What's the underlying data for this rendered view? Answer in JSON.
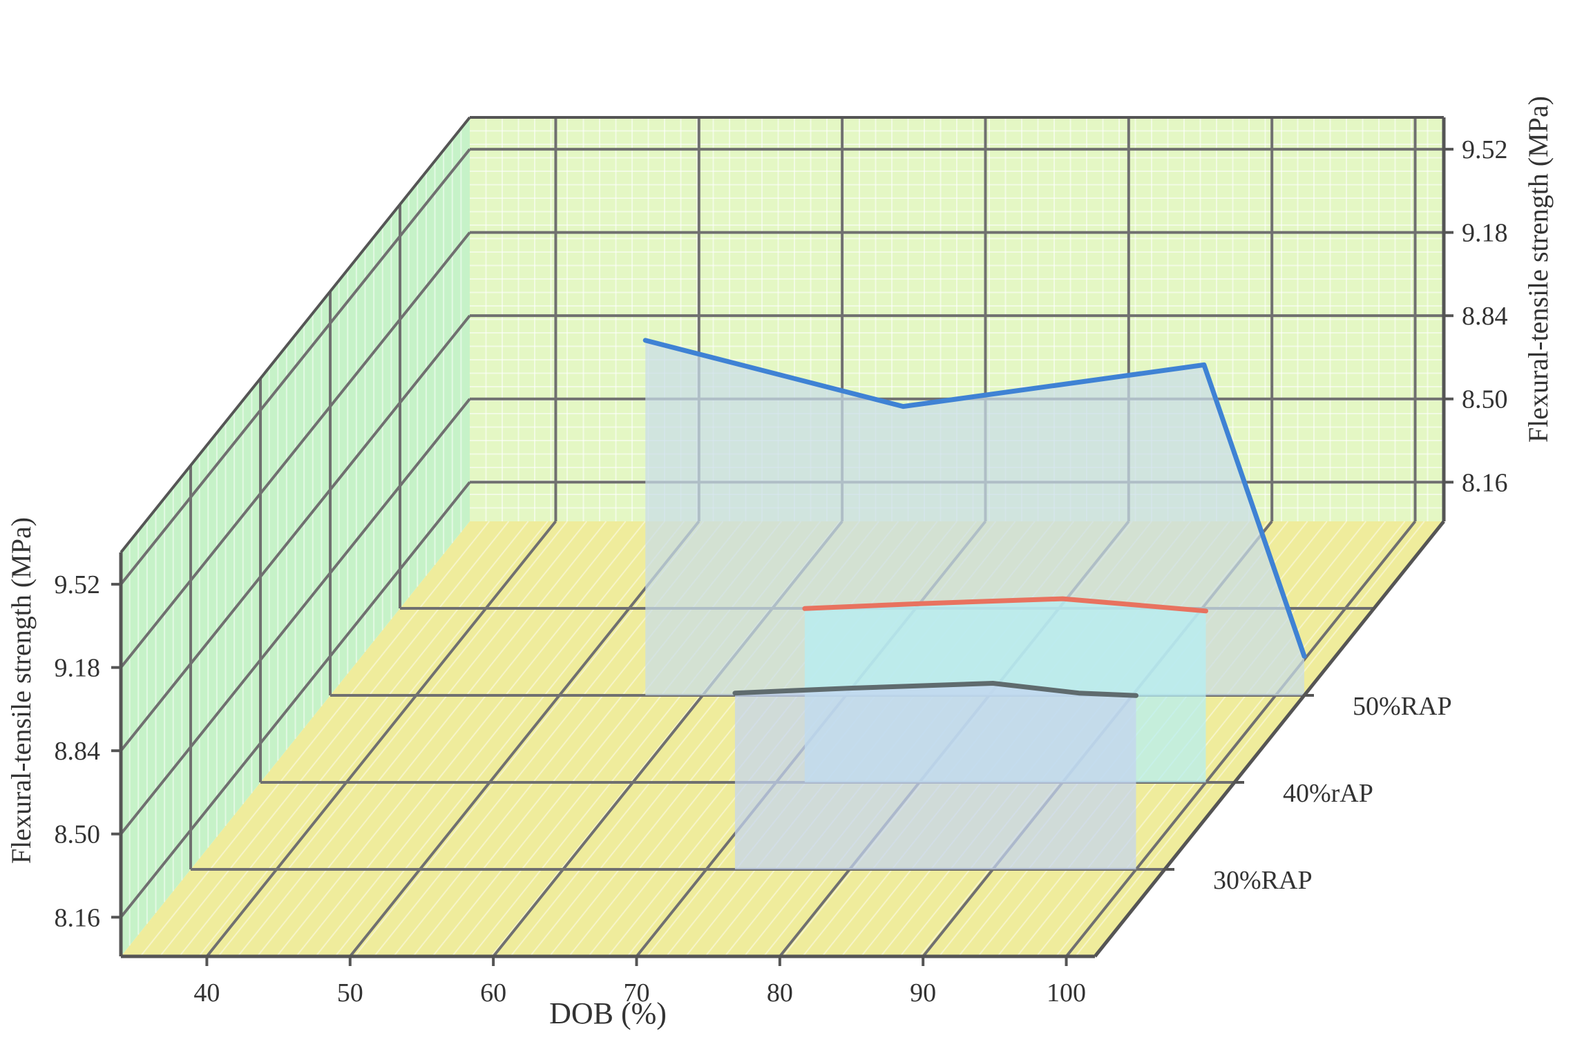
{
  "chart_data": {
    "type": "line",
    "style": "3d-waterfall",
    "xlabel": "DOB (%)",
    "ylabel": "Flexural-tensile strength (MPa)",
    "x_ticks": [
      "40",
      "50",
      "60",
      "70",
      "80",
      "90",
      "100"
    ],
    "y_ticks": [
      "8.16",
      "8.50",
      "8.84",
      "9.18",
      "9.52"
    ],
    "z_categories": [
      "30%RAP",
      "40%rAP",
      "50%RAP"
    ],
    "xlim": [
      34,
      102
    ],
    "ylim": [
      8.0,
      9.65
    ],
    "grid": true,
    "series": [
      {
        "name": "30%RAP",
        "color": "#5f6b6e",
        "fill": "#c4d4f0",
        "x": [
          72,
          80,
          90,
          96,
          100
        ],
        "y": [
          8.72,
          8.74,
          8.76,
          8.72,
          8.71
        ]
      },
      {
        "name": "40%rAP",
        "color": "#e8725f",
        "fill": "#b4eef4",
        "x": [
          72,
          80,
          90,
          96,
          100
        ],
        "y": [
          8.71,
          8.73,
          8.75,
          8.72,
          8.7
        ]
      },
      {
        "name": "50%RAP",
        "color": "#3f82d4",
        "fill": "#c8dce8",
        "x": [
          56,
          74,
          95,
          102
        ],
        "y": [
          9.45,
          9.18,
          9.35,
          8.16
        ]
      }
    ],
    "colors": {
      "floor": "#efec9c",
      "back_wall": "#e4f7c4",
      "side_wall": "#c6f2c8",
      "grid": "#707070"
    }
  }
}
